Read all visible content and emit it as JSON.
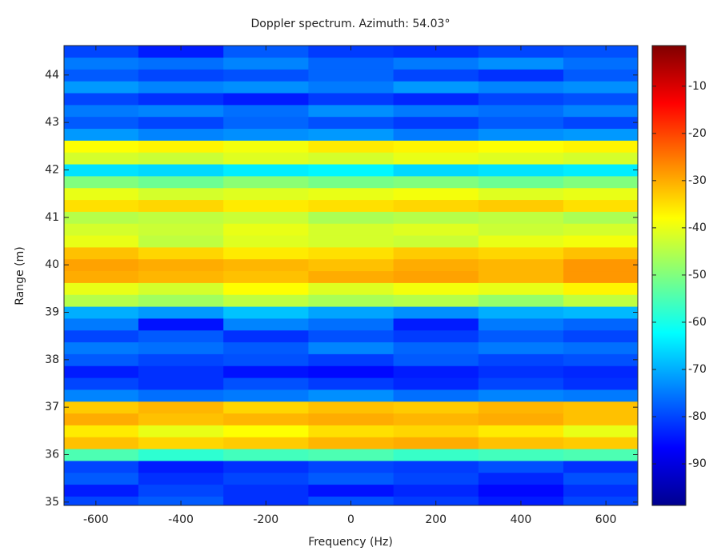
{
  "chart_data": {
    "type": "heatmap",
    "title": "Doppler spectrum. Azimuth: 54.03°",
    "x_label": "Frequency (Hz)",
    "y_label": "Range (m)",
    "colormap": "jet",
    "x": [
      -600,
      -400,
      -200,
      0,
      200,
      400,
      600
    ],
    "y": [
      35,
      35.25,
      35.5,
      35.75,
      36,
      36.25,
      36.5,
      36.75,
      37,
      37.25,
      37.5,
      37.75,
      38,
      38.25,
      38.5,
      38.75,
      39,
      39.25,
      39.5,
      39.75,
      40,
      40.25,
      40.5,
      40.75,
      41,
      41.25,
      41.5,
      41.75,
      42,
      42.25,
      42.5,
      42.75,
      43,
      43.25,
      43.5,
      43.75,
      44,
      44.25,
      44.5
    ],
    "values": [
      [
        -80,
        -78,
        -82,
        -79,
        -81,
        -84,
        -80
      ],
      [
        -84,
        -80,
        -82,
        -85,
        -83,
        -86,
        -82
      ],
      [
        -78,
        -82,
        -80,
        -78,
        -80,
        -83,
        -79
      ],
      [
        -80,
        -84,
        -82,
        -80,
        -81,
        -79,
        -82
      ],
      [
        -55,
        -58,
        -56,
        -55,
        -57,
        -56,
        -55
      ],
      [
        -32,
        -34,
        -33,
        -31,
        -30,
        -32,
        -33
      ],
      [
        -36,
        -40,
        -38,
        -35,
        -34,
        -36,
        -40
      ],
      [
        -30,
        -32,
        -31,
        -30,
        -31,
        -30,
        -32
      ],
      [
        -33,
        -31,
        -34,
        -32,
        -33,
        -31,
        -32
      ],
      [
        -74,
        -76,
        -75,
        -73,
        -76,
        -74,
        -75
      ],
      [
        -80,
        -82,
        -79,
        -81,
        -83,
        -80,
        -82
      ],
      [
        -84,
        -82,
        -85,
        -86,
        -84,
        -82,
        -83
      ],
      [
        -78,
        -80,
        -79,
        -81,
        -78,
        -80,
        -79
      ],
      [
        -75,
        -76,
        -78,
        -74,
        -77,
        -75,
        -76
      ],
      [
        -80,
        -78,
        -82,
        -79,
        -81,
        -78,
        -80
      ],
      [
        -75,
        -85,
        -74,
        -76,
        -84,
        -75,
        -77
      ],
      [
        -70,
        -72,
        -68,
        -71,
        -73,
        -70,
        -69
      ],
      [
        -45,
        -47,
        -44,
        -46,
        -45,
        -48,
        -44
      ],
      [
        -40,
        -42,
        -38,
        -41,
        -39,
        -40,
        -37
      ],
      [
        -30,
        -31,
        -32,
        -30,
        -29,
        -31,
        -28
      ],
      [
        -29,
        -30,
        -31,
        -32,
        -30,
        -31,
        -28
      ],
      [
        -32,
        -34,
        -36,
        -35,
        -33,
        -34,
        -32
      ],
      [
        -40,
        -44,
        -41,
        -42,
        -43,
        -40,
        -39
      ],
      [
        -42,
        -43,
        -40,
        -42,
        -41,
        -43,
        -42
      ],
      [
        -45,
        -44,
        -43,
        -46,
        -45,
        -44,
        -46
      ],
      [
        -35,
        -34,
        -36,
        -35,
        -34,
        -33,
        -35
      ],
      [
        -40,
        -42,
        -41,
        -40,
        -39,
        -41,
        -40
      ],
      [
        -50,
        -52,
        -49,
        -51,
        -50,
        -52,
        -50
      ],
      [
        -65,
        -66,
        -64,
        -63,
        -66,
        -65,
        -64
      ],
      [
        -42,
        -43,
        -41,
        -42,
        -40,
        -41,
        -42
      ],
      [
        -38,
        -37,
        -39,
        -36,
        -37,
        -38,
        -37
      ],
      [
        -72,
        -74,
        -73,
        -72,
        -75,
        -73,
        -72
      ],
      [
        -78,
        -80,
        -77,
        -79,
        -81,
        -78,
        -80
      ],
      [
        -75,
        -74,
        -76,
        -73,
        -75,
        -76,
        -74
      ],
      [
        -80,
        -82,
        -84,
        -81,
        -83,
        -80,
        -79
      ],
      [
        -72,
        -74,
        -73,
        -75,
        -72,
        -74,
        -73
      ],
      [
        -78,
        -80,
        -79,
        -77,
        -80,
        -82,
        -78
      ],
      [
        -75,
        -76,
        -74,
        -77,
        -75,
        -73,
        -76
      ],
      [
        -80,
        -84,
        -78,
        -81,
        -82,
        -80,
        -79
      ]
    ],
    "xlim": [
      -675,
      675
    ],
    "xticks": [
      -600,
      -400,
      -200,
      0,
      200,
      400,
      600
    ],
    "ylim": [
      34.93,
      44.62
    ],
    "yticks": [
      35,
      36,
      37,
      38,
      39,
      40,
      41,
      42,
      43,
      44
    ],
    "clim": [
      -98.8,
      -1.4
    ],
    "cticks": [
      -90,
      -80,
      -70,
      -60,
      -50,
      -40,
      -30,
      -20,
      -10
    ]
  }
}
